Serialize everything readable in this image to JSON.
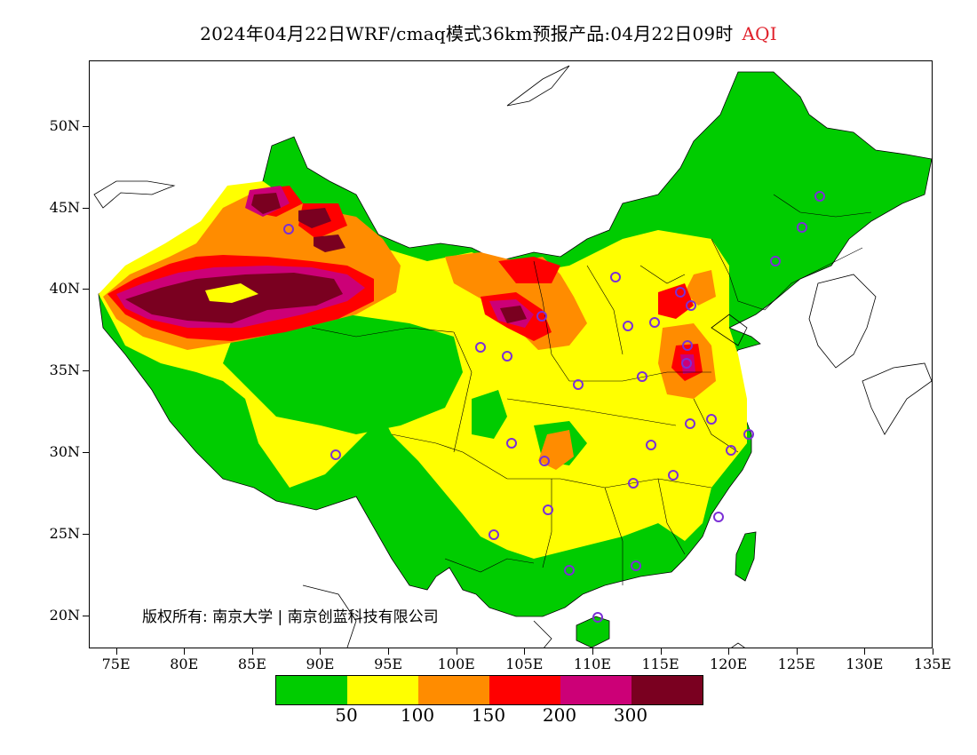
{
  "title": {
    "main": "2024年04月22日WRF/cmaq模式36km预报产品:04月22日09时",
    "variable": "AQI"
  },
  "map": {
    "lon_range": [
      73,
      135
    ],
    "lat_range": [
      18,
      54
    ],
    "lat_ticks": [
      "50N",
      "45N",
      "40N",
      "35N",
      "30N",
      "25N",
      "20N"
    ],
    "lat_values": [
      50,
      45,
      40,
      35,
      30,
      25,
      20
    ],
    "lon_ticks": [
      "75E",
      "80E",
      "85E",
      "90E",
      "95E",
      "100E",
      "105E",
      "110E",
      "115E",
      "120E",
      "125E",
      "130E",
      "135E"
    ],
    "lon_values": [
      75,
      80,
      85,
      90,
      95,
      100,
      105,
      110,
      115,
      120,
      125,
      130,
      135
    ],
    "colors": {
      "good": "#00cc00",
      "moderate": "#ffff00",
      "sensitive": "#ff8c00",
      "unhealthy": "#ff0000",
      "very_unhealthy": "#cc0077",
      "hazardous": "#7a0020",
      "station_marker": "#7b2fd6"
    }
  },
  "copyright": "版权所有: 南京大学 | 南京创蓝科技有限公司",
  "legend": {
    "colors": [
      "#00cc00",
      "#ffff00",
      "#ff8c00",
      "#ff0000",
      "#cc0077",
      "#7a0020"
    ],
    "labels": [
      "50",
      "100",
      "150",
      "200",
      "300"
    ]
  }
}
